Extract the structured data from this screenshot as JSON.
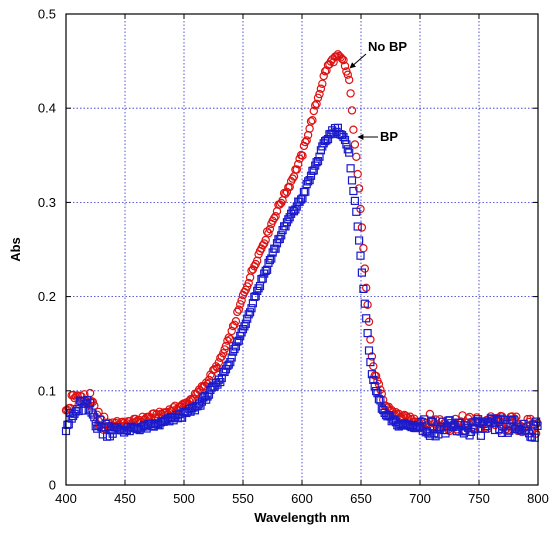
{
  "chart_data": {
    "type": "scatter",
    "xlabel": "Wavelength nm",
    "ylabel": "Abs",
    "xlim": [
      400,
      800
    ],
    "ylim": [
      0,
      0.5
    ],
    "x_ticks": [
      400,
      450,
      500,
      550,
      600,
      650,
      700,
      750,
      800
    ],
    "y_ticks": [
      0,
      0.1,
      0.2,
      0.3,
      0.4,
      0.5
    ],
    "grid": true,
    "colors": {
      "no_bp": "#dd1111",
      "bp": "#1a1acc",
      "grid": "#2a2ad0"
    },
    "series": [
      {
        "name": "No BP",
        "marker": "circle",
        "x": [
          400,
          405,
          410,
          415,
          420,
          425,
          430,
          440,
          450,
          460,
          470,
          480,
          490,
          500,
          510,
          520,
          530,
          540,
          550,
          560,
          570,
          580,
          590,
          600,
          610,
          620,
          625,
          630,
          635,
          640,
          645,
          650,
          655,
          660,
          670,
          680,
          690,
          700,
          720,
          740,
          760,
          780,
          800
        ],
        "y": [
          0.075,
          0.09,
          0.095,
          0.09,
          0.09,
          0.075,
          0.065,
          0.065,
          0.065,
          0.068,
          0.072,
          0.075,
          0.08,
          0.085,
          0.095,
          0.11,
          0.13,
          0.16,
          0.2,
          0.235,
          0.265,
          0.295,
          0.32,
          0.35,
          0.395,
          0.44,
          0.45,
          0.455,
          0.45,
          0.43,
          0.36,
          0.29,
          0.2,
          0.125,
          0.085,
          0.075,
          0.07,
          0.068,
          0.065,
          0.065,
          0.065,
          0.065,
          0.06
        ]
      },
      {
        "name": "BP",
        "marker": "square",
        "x": [
          400,
          405,
          410,
          415,
          420,
          425,
          430,
          440,
          450,
          460,
          470,
          480,
          490,
          500,
          510,
          520,
          530,
          540,
          550,
          560,
          570,
          580,
          590,
          600,
          610,
          620,
          625,
          630,
          635,
          640,
          645,
          650,
          655,
          660,
          670,
          680,
          690,
          700,
          720,
          740,
          760,
          780,
          800
        ],
        "y": [
          0.065,
          0.07,
          0.08,
          0.085,
          0.08,
          0.07,
          0.06,
          0.06,
          0.058,
          0.06,
          0.062,
          0.065,
          0.07,
          0.075,
          0.082,
          0.095,
          0.11,
          0.135,
          0.165,
          0.2,
          0.23,
          0.26,
          0.285,
          0.305,
          0.335,
          0.365,
          0.375,
          0.378,
          0.37,
          0.35,
          0.3,
          0.24,
          0.165,
          0.11,
          0.075,
          0.065,
          0.063,
          0.062,
          0.06,
          0.06,
          0.062,
          0.062,
          0.058
        ]
      }
    ],
    "annotations": [
      {
        "text": "No BP",
        "series": "No BP",
        "points_to_x": 640
      },
      {
        "text": "BP",
        "series": "BP",
        "points_to_x": 642
      }
    ]
  }
}
